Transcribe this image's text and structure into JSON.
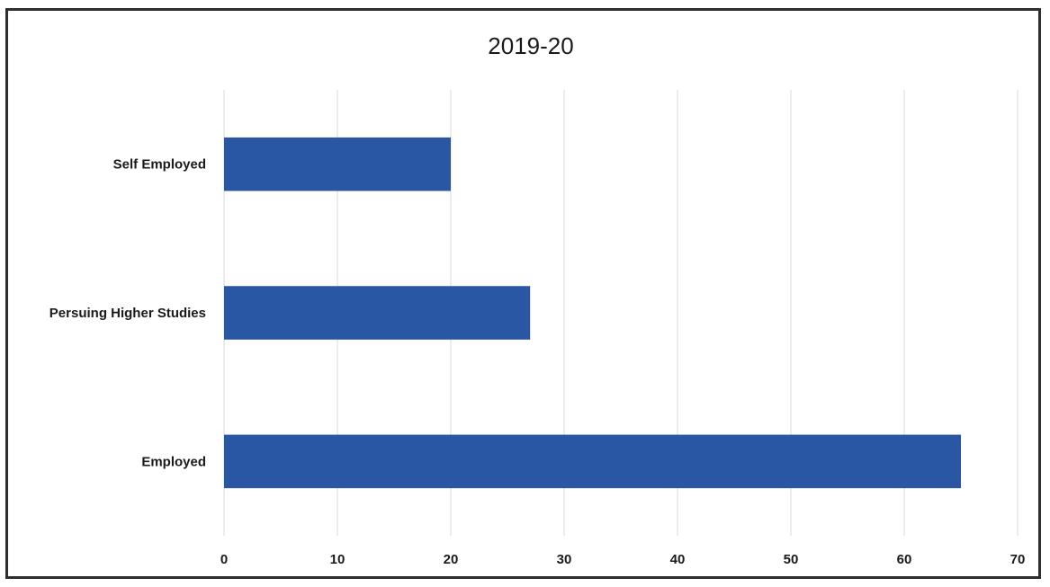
{
  "chart_data": {
    "type": "bar",
    "orientation": "horizontal",
    "title": "2019-20",
    "categories": [
      "Self Employed",
      "Persuing Higher Studies",
      "Employed"
    ],
    "values": [
      20,
      27,
      65
    ],
    "xlim": [
      0,
      70
    ],
    "x_ticks": [
      0,
      10,
      20,
      30,
      40,
      50,
      60,
      70
    ],
    "grid": "vertical",
    "legend": "none",
    "bar_color": "#2957a4"
  }
}
